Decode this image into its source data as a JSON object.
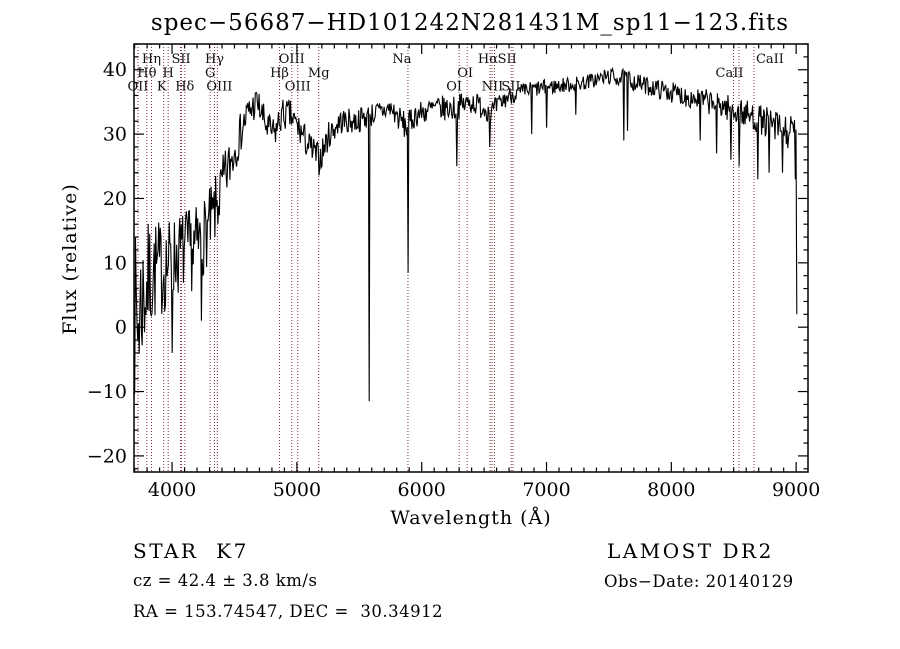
{
  "chart_data": {
    "type": "line",
    "title": "spec−56687−HD101242N281431M_sp11−123.fits",
    "xlabel": "Wavelength (Å)",
    "ylabel": "Flux (relative)",
    "xlim": [
      3695,
      9095
    ],
    "ylim": [
      -22.5,
      44
    ],
    "xticks_major": [
      4000,
      5000,
      6000,
      7000,
      8000,
      9000
    ],
    "yticks_major": [
      -20,
      -10,
      0,
      10,
      20,
      30,
      40
    ],
    "x_minor_step": 100,
    "y_minor_step": 2,
    "grid": false,
    "line_color": "#000000",
    "marker_color": "#7b3036",
    "series": [
      {
        "name": "spectrum",
        "seed": 7,
        "sample_step": 6,
        "end": 9008,
        "anchors": [
          [
            3695,
            2,
            13
          ],
          [
            3720,
            0,
            14
          ],
          [
            3750,
            4,
            11
          ],
          [
            3790,
            6,
            10
          ],
          [
            3830,
            8,
            9
          ],
          [
            3870,
            9,
            8
          ],
          [
            3920,
            9,
            7.5
          ],
          [
            3970,
            10,
            7
          ],
          [
            4030,
            11,
            6.5
          ],
          [
            4100,
            12,
            6.5
          ],
          [
            4170,
            12,
            6.5
          ],
          [
            4250,
            14,
            6
          ],
          [
            4330,
            17,
            5.5
          ],
          [
            4420,
            23,
            4.5
          ],
          [
            4510,
            28,
            3.5
          ],
          [
            4600,
            33,
            2.8
          ],
          [
            4680,
            35,
            2.5
          ],
          [
            4760,
            31,
            2.5
          ],
          [
            4820,
            30,
            2.5
          ],
          [
            4880,
            33,
            2.5
          ],
          [
            4940,
            33,
            2.5
          ],
          [
            5010,
            31,
            2.5
          ],
          [
            5100,
            28,
            2.5
          ],
          [
            5180,
            26,
            2.5
          ],
          [
            5260,
            30,
            2.2
          ],
          [
            5350,
            32,
            2
          ],
          [
            5470,
            32,
            2
          ],
          [
            5600,
            33,
            1.9
          ],
          [
            5750,
            34,
            1.8
          ],
          [
            5880,
            31,
            2.2
          ],
          [
            5950,
            33,
            1.9
          ],
          [
            6100,
            34,
            2
          ],
          [
            6250,
            34,
            2
          ],
          [
            6400,
            35,
            1.9
          ],
          [
            6563,
            33.5,
            1.8
          ],
          [
            6700,
            36,
            1.4
          ],
          [
            6900,
            37,
            1.3
          ],
          [
            7100,
            37.5,
            1.2
          ],
          [
            7300,
            38,
            1.2
          ],
          [
            7500,
            39,
            1.3
          ],
          [
            7650,
            38.5,
            1.5
          ],
          [
            7800,
            37.5,
            1.4
          ],
          [
            8000,
            36.5,
            1.6
          ],
          [
            8200,
            35.5,
            1.8
          ],
          [
            8400,
            34.5,
            2
          ],
          [
            8600,
            33,
            2.3
          ],
          [
            8800,
            31.5,
            2.5
          ],
          [
            8950,
            30,
            2.8
          ],
          [
            9008,
            31,
            2.8
          ]
        ],
        "spikes": [
          [
            3998,
            -4
          ],
          [
            4232,
            1
          ],
          [
            5577,
            -11.5
          ],
          [
            5890,
            8.5
          ],
          [
            6283,
            25
          ],
          [
            6545,
            28
          ],
          [
            6880,
            30
          ],
          [
            7002,
            31
          ],
          [
            7235,
            33
          ],
          [
            7617,
            29
          ],
          [
            7646,
            30.5
          ],
          [
            8230,
            29
          ],
          [
            8365,
            27
          ],
          [
            8475,
            26
          ],
          [
            8545,
            25
          ],
          [
            8692,
            23
          ],
          [
            8782,
            24
          ],
          [
            8890,
            24
          ],
          [
            8992,
            23
          ],
          [
            9005,
            2
          ]
        ]
      }
    ],
    "marker_lines": [
      3727,
      3798,
      3835,
      3933,
      3969,
      4068,
      4076,
      4102,
      4305,
      4340,
      4363,
      4861,
      4959,
      5007,
      5175,
      5890,
      6300,
      6364,
      6548,
      6563,
      6583,
      6717,
      6731,
      8498,
      8542,
      8662
    ],
    "marker_labels": [
      {
        "text": "Hη",
        "row": 1,
        "wavelength": 3835,
        "dx": 0
      },
      {
        "text": "SII",
        "row": 1,
        "wavelength": 4072,
        "dx": 0
      },
      {
        "text": "Hγ",
        "row": 1,
        "wavelength": 4340,
        "dx": 0
      },
      {
        "text": "OIII",
        "row": 1,
        "wavelength": 4959,
        "dx": 0
      },
      {
        "text": "Na",
        "row": 1,
        "wavelength": 5890,
        "dx": -6
      },
      {
        "text": "Hα",
        "row": 1,
        "wavelength": 6563,
        "dx": -4
      },
      {
        "text": "SII",
        "row": 1,
        "wavelength": 6717,
        "dx": -4
      },
      {
        "text": "CaII",
        "row": 1,
        "wavelength": 8662,
        "dx": 16
      },
      {
        "text": "Hθ",
        "row": 2,
        "wavelength": 3798,
        "dx": 0
      },
      {
        "text": "H",
        "row": 2,
        "wavelength": 3969,
        "dx": 0
      },
      {
        "text": "G",
        "row": 2,
        "wavelength": 4305,
        "dx": 0
      },
      {
        "text": "Hβ",
        "row": 2,
        "wavelength": 4861,
        "dx": 0
      },
      {
        "text": "Mg",
        "row": 2,
        "wavelength": 5175,
        "dx": 0
      },
      {
        "text": "OI",
        "row": 2,
        "wavelength": 6364,
        "dx": -2
      },
      {
        "text": "CaII",
        "row": 2,
        "wavelength": 8498,
        "dx": -4
      },
      {
        "text": "OII",
        "row": 3,
        "wavelength": 3727,
        "dx": 0
      },
      {
        "text": "K",
        "row": 3,
        "wavelength": 3933,
        "dx": -2
      },
      {
        "text": "Hδ",
        "row": 3,
        "wavelength": 4102,
        "dx": 0
      },
      {
        "text": "OIII",
        "row": 3,
        "wavelength": 4363,
        "dx": 2
      },
      {
        "text": "OIII",
        "row": 3,
        "wavelength": 5007,
        "dx": 0
      },
      {
        "text": "OI",
        "row": 3,
        "wavelength": 6300,
        "dx": -5
      },
      {
        "text": "NII",
        "row": 3,
        "wavelength": 6583,
        "dx": -2
      },
      {
        "text": "SII",
        "row": 3,
        "wavelength": 6731,
        "dx": -2
      }
    ]
  },
  "annotations": {
    "class_label": "STAR  K7",
    "survey": "LAMOST DR2",
    "cz": "cz = 42.4 ± 3.8 km/s",
    "obs_date": "Obs−Date: 20140129",
    "radec": "RA = 153.74547, DEC =  30.34912"
  }
}
